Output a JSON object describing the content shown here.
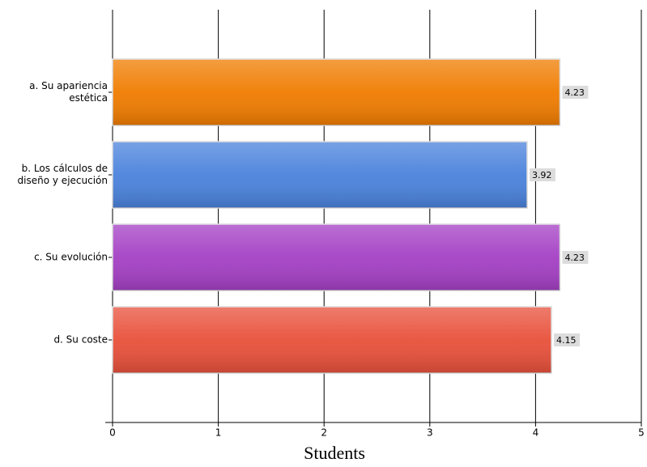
{
  "chart_data": {
    "type": "bar",
    "orientation": "horizontal",
    "categories": [
      "a. Su apariencia estética",
      "b. Los cálculos de diseño y ejecución",
      "c. Su evolución",
      "d. Su coste"
    ],
    "values": [
      4.23,
      3.92,
      4.23,
      4.15
    ],
    "colors": [
      "#f07c00",
      "#4a82dc",
      "#a43fc4",
      "#e8503a"
    ],
    "x_label": "Students",
    "xlim": [
      0,
      5
    ],
    "xticks": [
      0,
      1,
      2,
      3,
      4,
      5
    ],
    "grid": true
  }
}
